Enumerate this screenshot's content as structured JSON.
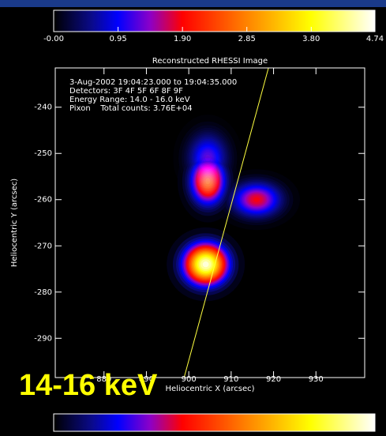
{
  "chart_data": {
    "type": "image",
    "title": "Reconstructed RHESSI Image",
    "annotations": [
      "3-Aug-2002 19:04:23.000 to 19:04:35.000",
      "Detectors: 3F 4F 5F 6F  8F 9F",
      "Energy Range: 14.0 - 16.0 keV",
      "Pixon    Total counts: 3.76E+04"
    ],
    "band_label": "14-16 keV",
    "xlabel": "Heliocentric X (arcsec)",
    "ylabel": "Heliocentric Y (arcsec)",
    "xlim": [
      868.5,
      941.5
    ],
    "xticks": [
      880,
      890,
      900,
      910,
      920,
      930
    ],
    "ylim": [
      -298.5,
      -231.5
    ],
    "yticks": [
      -240,
      -250,
      -260,
      -270,
      -280,
      -290
    ],
    "colorbar_lim": [
      0,
      4.74
    ],
    "colorbar_ticks": [
      {
        "value": 0,
        "label": "-0.00"
      },
      0.95,
      {
        "value": 1.9,
        "label": "1.90"
      },
      2.85,
      {
        "value": 3.8,
        "label": "3.80"
      },
      4.74
    ],
    "sources": [
      {
        "x": 904.5,
        "y": -256,
        "value": 3.0
      },
      {
        "x": 904.5,
        "y": -251,
        "value": 1.3
      },
      {
        "x": 916,
        "y": -260,
        "value": 1.9
      },
      {
        "x": 904,
        "y": -274,
        "value": 4.7
      }
    ],
    "limb": {
      "x": [
        898.9,
        918.8
      ],
      "y": [
        -298.5,
        -231.5
      ],
      "color": "#ffff40"
    }
  }
}
